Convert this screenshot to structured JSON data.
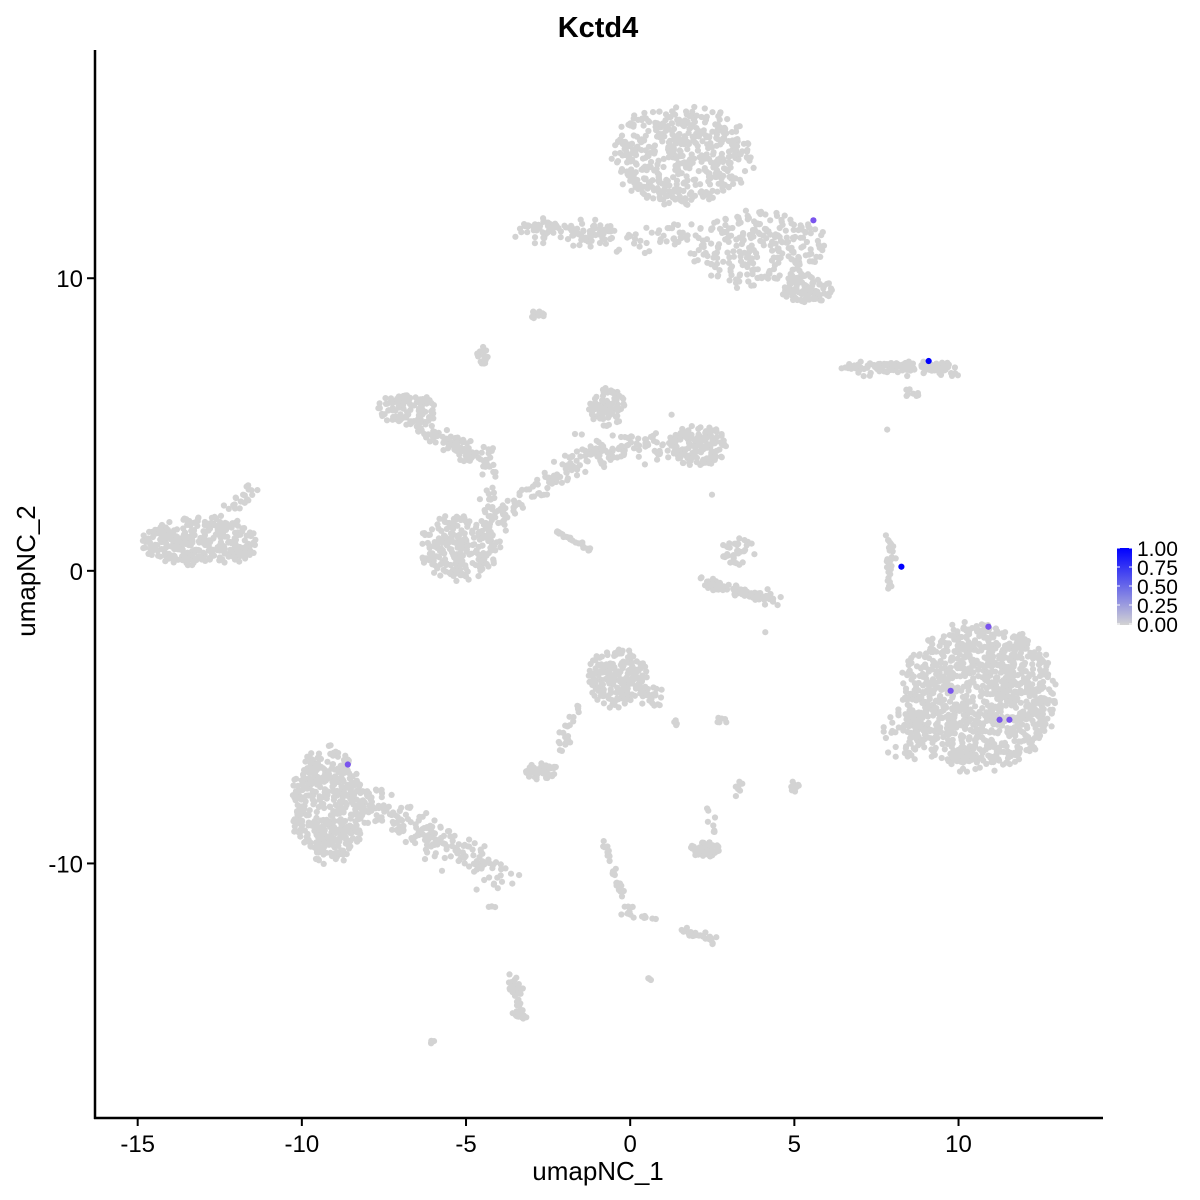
{
  "chart_data": {
    "type": "scatter",
    "title": "Kctd4",
    "xlabel": "umapNC_1",
    "ylabel": "umapNC_2",
    "xlim": [
      -16.3,
      14.4
    ],
    "ylim": [
      -18.7,
      17.8
    ],
    "x_ticks": [
      -15,
      -10,
      -5,
      0,
      5,
      10
    ],
    "y_ticks": [
      -10,
      0,
      10
    ],
    "grid": false,
    "legend": {
      "placement": "right",
      "type": "colorbar",
      "ticks": [
        "0.00",
        "0.25",
        "0.50",
        "0.75",
        "1.00"
      ],
      "range": [
        0,
        1
      ],
      "low_color": "#d3d3d3",
      "high_color": "#0000ff"
    },
    "expressed_points": [
      {
        "x": 5.58,
        "y": 11.98,
        "value": 0.6
      },
      {
        "x": 9.09,
        "y": 7.17,
        "value": 1.0
      },
      {
        "x": 8.26,
        "y": 0.14,
        "value": 1.0
      },
      {
        "x": 10.91,
        "y": -1.91,
        "value": 0.6
      },
      {
        "x": 9.76,
        "y": -4.1,
        "value": 0.6
      },
      {
        "x": 11.25,
        "y": -5.09,
        "value": 0.6
      },
      {
        "x": 11.55,
        "y": -5.09,
        "value": 0.6
      },
      {
        "x": -8.6,
        "y": -6.62,
        "value": 0.6
      }
    ],
    "background_clusters": [
      {
        "kind": "ellipse",
        "cx": 1.6,
        "cy": 14.2,
        "rx": 2.3,
        "ry": 1.8,
        "n": 500
      },
      {
        "kind": "ellipse",
        "cx": 3.9,
        "cy": 11.0,
        "rx": 2.2,
        "ry": 1.4,
        "n": 260
      },
      {
        "kind": "ellipse",
        "cx": 5.4,
        "cy": 9.6,
        "rx": 0.9,
        "ry": 0.5,
        "n": 90
      },
      {
        "kind": "segment",
        "x0": -3.2,
        "y0": 11.8,
        "x1": -0.6,
        "y1": 11.4,
        "w": 0.4,
        "n": 110
      },
      {
        "kind": "segment",
        "x0": -0.2,
        "y0": 11.2,
        "x1": 2.2,
        "y1": 11.5,
        "w": 0.4,
        "n": 40
      },
      {
        "kind": "ellipse",
        "cx": -2.84,
        "cy": 8.74,
        "rx": 0.25,
        "ry": 0.15,
        "n": 15
      },
      {
        "kind": "ellipse",
        "cx": -4.48,
        "cy": 7.37,
        "rx": 0.2,
        "ry": 0.35,
        "n": 18
      },
      {
        "kind": "segment",
        "x0": 6.6,
        "y0": 7.0,
        "x1": 9.9,
        "y1": 6.9,
        "w": 0.25,
        "n": 120
      },
      {
        "kind": "ellipse",
        "cx": 8.6,
        "cy": 6.1,
        "rx": 0.3,
        "ry": 0.2,
        "n": 8
      },
      {
        "kind": "ellipse",
        "cx": -6.8,
        "cy": 5.5,
        "rx": 1.0,
        "ry": 0.6,
        "n": 110
      },
      {
        "kind": "segment",
        "x0": -6.3,
        "y0": 4.9,
        "x1": -4.5,
        "y1": 3.8,
        "w": 0.35,
        "n": 80
      },
      {
        "kind": "segment",
        "x0": -4.3,
        "y0": 4.3,
        "x1": -4.3,
        "y1": 1.5,
        "w": 0.2,
        "n": 40
      },
      {
        "kind": "ellipse",
        "cx": -5.2,
        "cy": 0.8,
        "rx": 1.3,
        "ry": 1.2,
        "n": 230
      },
      {
        "kind": "segment",
        "x0": -4.3,
        "y0": 1.6,
        "x1": -1.5,
        "y1": 3.8,
        "w": 0.35,
        "n": 90
      },
      {
        "kind": "segment",
        "x0": -1.5,
        "y0": 4.0,
        "x1": 1.5,
        "y1": 4.4,
        "w": 0.5,
        "n": 110
      },
      {
        "kind": "ellipse",
        "cx": -0.7,
        "cy": 5.6,
        "rx": 0.6,
        "ry": 0.7,
        "n": 80
      },
      {
        "kind": "ellipse",
        "cx": 2.1,
        "cy": 4.3,
        "rx": 0.9,
        "ry": 0.8,
        "n": 140
      },
      {
        "kind": "segment",
        "x0": -2.3,
        "y0": 1.4,
        "x1": -1.2,
        "y1": 0.7,
        "w": 0.08,
        "n": 25
      },
      {
        "kind": "ellipse",
        "cx": -13.1,
        "cy": 1.0,
        "rx": 1.9,
        "ry": 0.9,
        "n": 330
      },
      {
        "kind": "segment",
        "x0": -12.5,
        "y0": 1.8,
        "x1": -11.4,
        "y1": 2.7,
        "w": 0.3,
        "n": 25
      },
      {
        "kind": "segment",
        "x0": 2.3,
        "y0": -0.4,
        "x1": 4.4,
        "y1": -1.0,
        "w": 0.2,
        "n": 90
      },
      {
        "kind": "ellipse",
        "cx": 3.3,
        "cy": 0.7,
        "rx": 0.6,
        "ry": 0.5,
        "n": 35
      },
      {
        "kind": "segment",
        "x0": 7.9,
        "y0": 1.2,
        "x1": 7.9,
        "y1": -0.7,
        "w": 0.12,
        "n": 30
      },
      {
        "kind": "ellipse",
        "cx": 10.6,
        "cy": -4.3,
        "rx": 2.5,
        "ry": 2.7,
        "n": 1100
      },
      {
        "kind": "ellipse",
        "cx": 8.4,
        "cy": -5.6,
        "rx": 0.8,
        "ry": 1.0,
        "n": 60
      },
      {
        "kind": "ellipse",
        "cx": -0.4,
        "cy": -3.7,
        "rx": 1.0,
        "ry": 1.1,
        "n": 170
      },
      {
        "kind": "segment",
        "x0": -0.1,
        "y0": -3.4,
        "x1": 0.9,
        "y1": -4.5,
        "w": 0.3,
        "n": 40
      },
      {
        "kind": "segment",
        "x0": -1.6,
        "y0": -4.6,
        "x1": -2.2,
        "y1": -6.2,
        "w": 0.2,
        "n": 25
      },
      {
        "kind": "ellipse",
        "cx": -9.2,
        "cy": -8.0,
        "rx": 1.2,
        "ry": 2.1,
        "n": 450
      },
      {
        "kind": "segment",
        "x0": -8.5,
        "y0": -7.6,
        "x1": -4.0,
        "y1": -10.4,
        "w": 0.55,
        "n": 220
      },
      {
        "kind": "ellipse",
        "cx": -2.7,
        "cy": -6.85,
        "rx": 0.55,
        "ry": 0.3,
        "n": 45
      },
      {
        "kind": "ellipse",
        "cx": 2.3,
        "cy": -9.5,
        "rx": 0.5,
        "ry": 0.3,
        "n": 50
      },
      {
        "kind": "segment",
        "x0": 2.4,
        "y0": -8.1,
        "x1": 2.6,
        "y1": -8.9,
        "w": 0.1,
        "n": 8
      },
      {
        "kind": "segment",
        "x0": -0.8,
        "y0": -9.3,
        "x1": 0.0,
        "y1": -11.8,
        "w": 0.12,
        "n": 35
      },
      {
        "kind": "segment",
        "x0": 1.5,
        "y0": -12.2,
        "x1": 2.5,
        "y1": -12.6,
        "w": 0.15,
        "n": 30
      },
      {
        "kind": "segment",
        "x0": -0.3,
        "y0": -11.8,
        "x1": 0.8,
        "y1": -11.9,
        "w": 0.08,
        "n": 8
      },
      {
        "kind": "segment",
        "x0": -3.6,
        "y0": -13.8,
        "x1": -3.3,
        "y1": -15.4,
        "w": 0.18,
        "n": 45
      },
      {
        "kind": "ellipse",
        "cx": -6.0,
        "cy": -16.1,
        "rx": 0.1,
        "ry": 0.08,
        "n": 4
      },
      {
        "kind": "ellipse",
        "cx": 5.0,
        "cy": -7.4,
        "rx": 0.15,
        "ry": 0.3,
        "n": 10
      },
      {
        "kind": "ellipse",
        "cx": 3.3,
        "cy": -7.4,
        "rx": 0.15,
        "ry": 0.4,
        "n": 8
      },
      {
        "kind": "ellipse",
        "cx": 0.6,
        "cy": -14.0,
        "rx": 0.1,
        "ry": 0.1,
        "n": 4
      },
      {
        "kind": "ellipse",
        "cx": -4.2,
        "cy": -11.5,
        "rx": 0.2,
        "ry": 0.05,
        "n": 3
      },
      {
        "kind": "ellipse",
        "cx": 2.8,
        "cy": -5.1,
        "rx": 0.3,
        "ry": 0.1,
        "n": 6
      },
      {
        "kind": "ellipse",
        "cx": 1.4,
        "cy": -5.2,
        "rx": 0.2,
        "ry": 0.1,
        "n": 4
      },
      {
        "kind": "ellipse",
        "cx": 4.1,
        "cy": -2.1,
        "rx": 0.05,
        "ry": 0.05,
        "n": 1
      },
      {
        "kind": "ellipse",
        "cx": 7.8,
        "cy": 4.8,
        "rx": 0.05,
        "ry": 0.05,
        "n": 1
      },
      {
        "kind": "ellipse",
        "cx": 2.5,
        "cy": 2.6,
        "rx": 0.05,
        "ry": 0.05,
        "n": 1
      }
    ]
  }
}
